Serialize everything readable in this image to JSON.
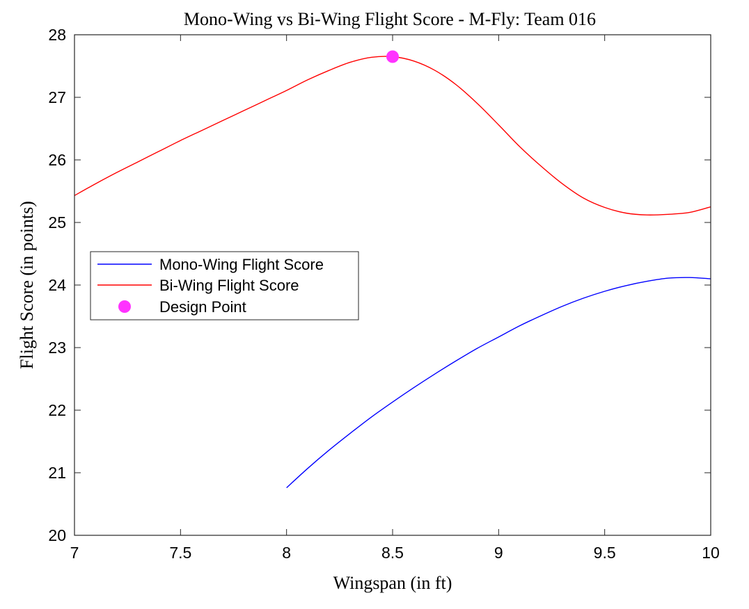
{
  "chart_data": {
    "type": "line",
    "title": "Mono-Wing vs Bi-Wing Flight Score - M-Fly: Team 016",
    "xlabel": "Wingspan (in ft)",
    "ylabel": "Flight Score (in points)",
    "xlim": [
      7,
      10
    ],
    "ylim": [
      20,
      28
    ],
    "xticks": [
      7,
      7.5,
      8,
      8.5,
      9,
      9.5,
      10
    ],
    "xtick_labels": [
      "7",
      "7.5",
      "8",
      "8.5",
      "9",
      "9.5",
      "10"
    ],
    "yticks": [
      20,
      21,
      22,
      23,
      24,
      25,
      26,
      27,
      28
    ],
    "ytick_labels": [
      "20",
      "21",
      "22",
      "23",
      "24",
      "25",
      "26",
      "27",
      "28"
    ],
    "grid": false,
    "legend_position": "middle-left",
    "series": [
      {
        "name": "Mono-Wing Flight Score",
        "color": "#0000ff",
        "x": [
          8.0,
          8.1,
          8.2,
          8.3,
          8.4,
          8.5,
          8.6,
          8.7,
          8.8,
          8.9,
          9.0,
          9.1,
          9.2,
          9.3,
          9.4,
          9.5,
          9.6,
          9.7,
          9.8,
          9.9,
          10.0
        ],
        "y": [
          20.76,
          21.07,
          21.36,
          21.63,
          21.89,
          22.13,
          22.36,
          22.58,
          22.79,
          22.99,
          23.17,
          23.35,
          23.51,
          23.66,
          23.79,
          23.9,
          23.99,
          24.06,
          24.11,
          24.12,
          24.1
        ]
      },
      {
        "name": "Bi-Wing Flight Score",
        "color": "#ff0000",
        "x": [
          7.0,
          7.1,
          7.2,
          7.3,
          7.4,
          7.5,
          7.6,
          7.7,
          7.8,
          7.9,
          8.0,
          8.1,
          8.2,
          8.3,
          8.4,
          8.5,
          8.6,
          8.7,
          8.8,
          8.9,
          9.0,
          9.1,
          9.2,
          9.3,
          9.4,
          9.5,
          9.6,
          9.7,
          9.8,
          9.9,
          10.0
        ],
        "y": [
          25.43,
          25.62,
          25.8,
          25.97,
          26.14,
          26.31,
          26.47,
          26.63,
          26.79,
          26.95,
          27.11,
          27.28,
          27.43,
          27.56,
          27.64,
          27.65,
          27.58,
          27.43,
          27.2,
          26.9,
          26.56,
          26.21,
          25.9,
          25.62,
          25.39,
          25.24,
          25.15,
          25.12,
          25.13,
          25.16,
          25.25
        ]
      }
    ],
    "design_point": {
      "name": "Design Point",
      "color": "#ff33ff",
      "x": 8.5,
      "y": 27.65
    }
  }
}
